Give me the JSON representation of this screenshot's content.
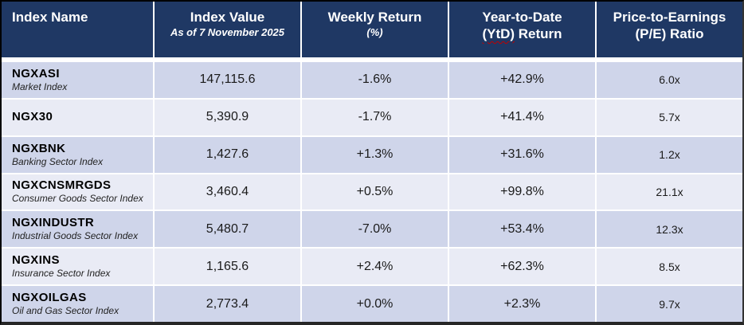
{
  "chart_data": {
    "type": "table",
    "columns": [
      {
        "id": "index-name",
        "title": "Index Name"
      },
      {
        "id": "index-value",
        "title": "Index Value",
        "subtitle": "As of 7 November 2025"
      },
      {
        "id": "weekly-return",
        "title": "Weekly Return",
        "subtitle": "(%)"
      },
      {
        "id": "ytd-return",
        "title_line1": "Year-to-Date",
        "title_line2_flagged": "(YtD)",
        "title_line2_rest": " Return"
      },
      {
        "id": "pe-ratio",
        "title_line1": "Price-to-Earnings",
        "title_line2": "(P/E) Ratio"
      }
    ],
    "rows": [
      {
        "ticker": "NGXASI",
        "description": "Market Index",
        "index_value": "147,115.6",
        "weekly_return": "-1.6%",
        "ytd_return": "+42.9%",
        "pe_ratio": "6.0x"
      },
      {
        "ticker": "NGX30",
        "description": "",
        "index_value": "5,390.9",
        "weekly_return": "-1.7%",
        "ytd_return": "+41.4%",
        "pe_ratio": "5.7x"
      },
      {
        "ticker": "NGXBNK",
        "description": "Banking Sector Index",
        "index_value": "1,427.6",
        "weekly_return": "+1.3%",
        "ytd_return": "+31.6%",
        "pe_ratio": "1.2x"
      },
      {
        "ticker": "NGXCNSMRGDS",
        "description": "Consumer Goods Sector Index",
        "index_value": "3,460.4",
        "weekly_return": "+0.5%",
        "ytd_return": "+99.8%",
        "pe_ratio": "21.1x"
      },
      {
        "ticker": "NGXINDUSTR",
        "description": "Industrial Goods Sector Index",
        "index_value": "5,480.7",
        "weekly_return": "-7.0%",
        "ytd_return": "+53.4%",
        "pe_ratio": "12.3x"
      },
      {
        "ticker": "NGXINS",
        "description": "Insurance Sector Index",
        "index_value": "1,165.6",
        "weekly_return": "+2.4%",
        "ytd_return": "+62.3%",
        "pe_ratio": "8.5x"
      },
      {
        "ticker": "NGXOILGAS",
        "description": "Oil and Gas Sector Index",
        "index_value": "2,773.4",
        "weekly_return": "+0.0%",
        "ytd_return": "+2.3%",
        "pe_ratio": "9.7x"
      }
    ]
  },
  "colors": {
    "header_bg": "#1F3864",
    "header_text": "#FFFFFF",
    "row_band_dark": "#CFD5EA",
    "row_band_light": "#E9EBF5",
    "body_text": "#1A1A1A",
    "spellcheck_squiggle": "#C00000",
    "outer_border": "#000000",
    "bottom_border": "#262626"
  }
}
